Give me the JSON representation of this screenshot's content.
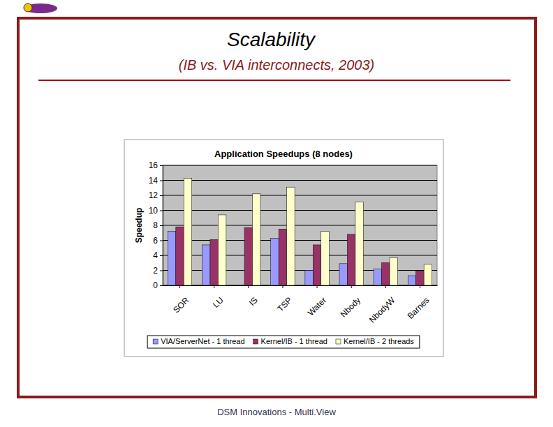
{
  "slide": {
    "title": "Scalability",
    "subtitle": "(IB vs. VIA interconnects, 2003)",
    "footer": "DSM Innovations - Multi.View"
  },
  "chart_data": {
    "type": "bar",
    "title": "Application Speedups (8 nodes)",
    "y_label": "Speedup",
    "categories": [
      "SOR",
      "LU",
      "IS",
      "TSP",
      "Water",
      "Nbody",
      "NbodyW",
      "Barnes"
    ],
    "series": [
      {
        "name": "VIA/ServerNet - 1 thread",
        "color": "#9999ff",
        "values": [
          7.2,
          5.4,
          null,
          6.3,
          2.0,
          2.9,
          2.2,
          1.3
        ]
      },
      {
        "name": "Kernel/IB - 1 thread",
        "color": "#993366",
        "values": [
          7.8,
          6.1,
          7.7,
          7.5,
          5.4,
          6.8,
          3.0,
          1.9
        ]
      },
      {
        "name": "Kernel/IB - 2 threads",
        "color": "#ffffcc",
        "values": [
          14.3,
          9.4,
          12.2,
          13.1,
          7.2,
          11.1,
          3.7,
          2.8
        ]
      }
    ],
    "ylim": [
      0,
      16
    ],
    "yticks": [
      0,
      2,
      4,
      6,
      8,
      10,
      12,
      14,
      16
    ],
    "grid": true,
    "legend": "bottom"
  }
}
